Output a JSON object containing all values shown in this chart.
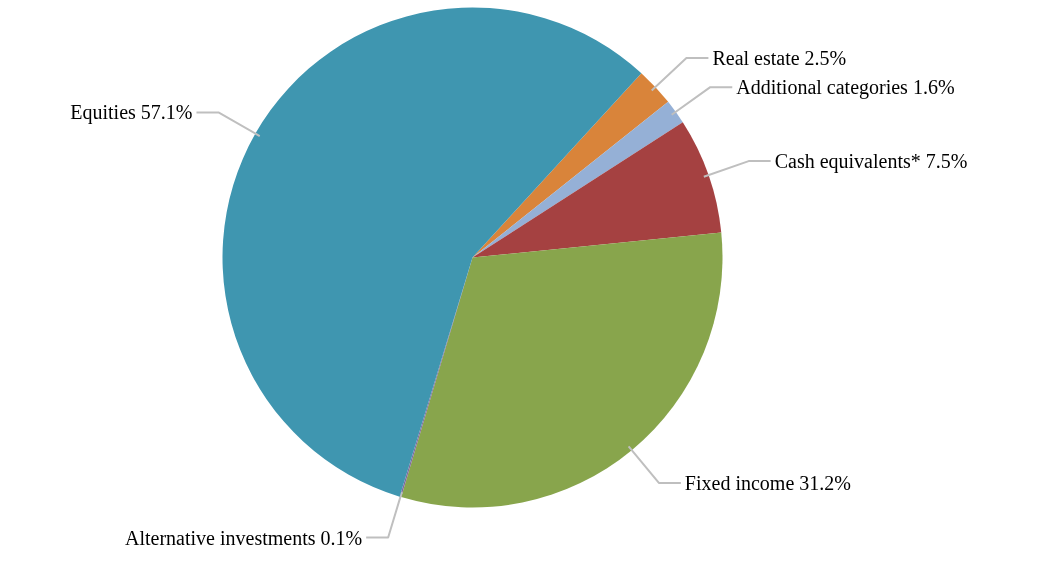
{
  "chart_data": {
    "type": "pie",
    "categories": [
      "Real estate",
      "Additional categories",
      "Cash equivalents*",
      "Fixed income",
      "Alternative investments",
      "Equities"
    ],
    "values": [
      2.5,
      1.6,
      7.5,
      31.2,
      0.1,
      57.1
    ],
    "colors": [
      "#d9843a",
      "#95b0d6",
      "#a54141",
      "#88a54c",
      "#7f6a9e",
      "#3f96b0"
    ],
    "value_labels": [
      "2.5%",
      "1.6%",
      "7.5%",
      "31.2%",
      "0.1%",
      "57.1%"
    ]
  }
}
